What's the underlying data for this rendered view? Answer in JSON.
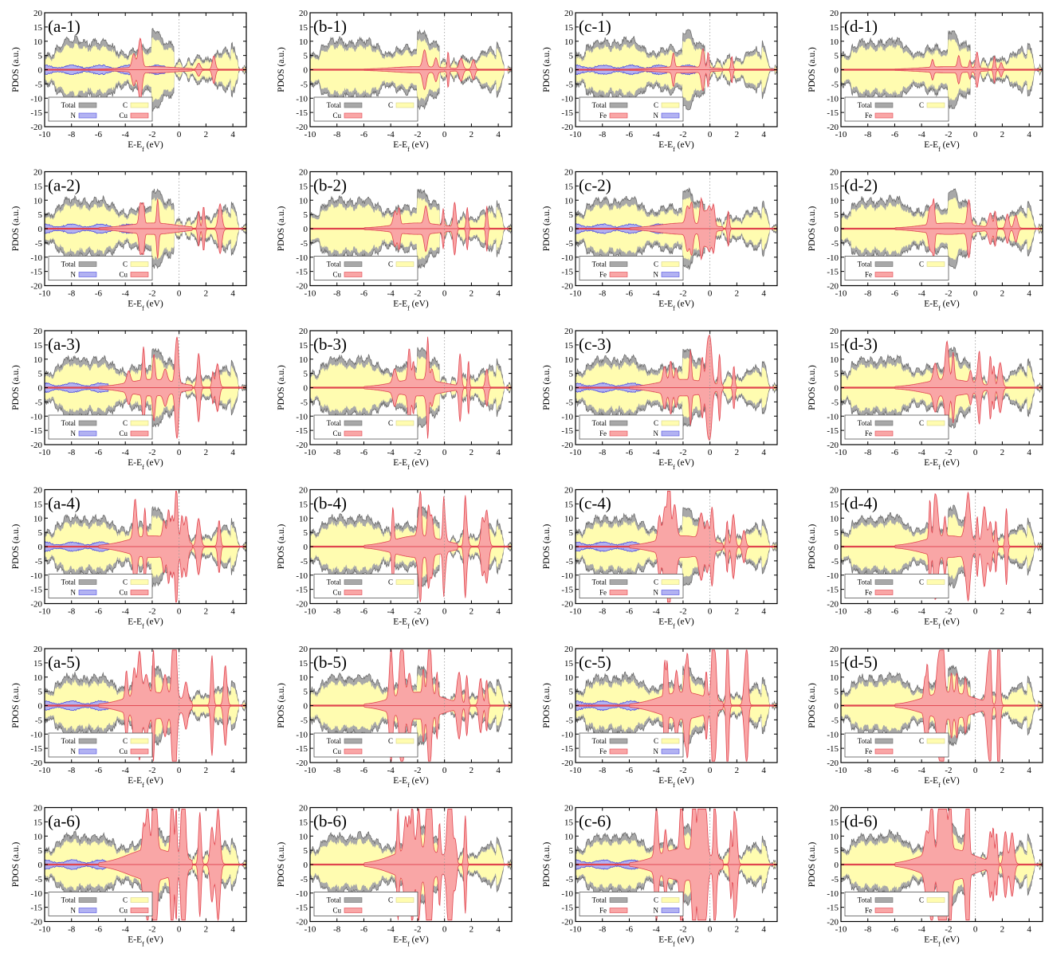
{
  "figure": {
    "columns": [
      "a",
      "b",
      "c",
      "d"
    ],
    "rows": [
      1,
      2,
      3,
      4,
      5,
      6
    ],
    "colors": {
      "total": "#a8a8a8",
      "total_edge": "#6e6e6e",
      "carbon": "#fffcb0",
      "metal": "#f9a6a6",
      "metal_edge": "#e0454f",
      "nitrogen": "#b2b2f2",
      "nitrogen_edge": "#5050e0",
      "axis": "#000000",
      "zero_line": "#9a9a9a"
    }
  },
  "chart_data": {
    "type": "area",
    "layout": "4 columns (a, b, c, d) x 6 rows (1-6) of PDOS panels",
    "ylabel": "PDOS (a.u.)",
    "xlabel": "E-E_f (eV)",
    "xlim": [
      -10,
      5
    ],
    "ylim": [
      -20,
      20
    ],
    "xticks": [
      -10,
      -8,
      -6,
      -4,
      -2,
      0,
      2,
      4
    ],
    "yticks": [
      -20,
      -15,
      -10,
      -5,
      0,
      5,
      10,
      15,
      20
    ],
    "fermi_line": 0,
    "legend_position": "lower-left",
    "columns": [
      {
        "id": "a",
        "metal": "Cu",
        "has_N": true,
        "legend": [
          "Total",
          "C",
          "N",
          "Cu"
        ],
        "panels": [
          "(a-1)",
          "(a-2)",
          "(a-3)",
          "(a-4)",
          "(a-5)",
          "(a-6)"
        ]
      },
      {
        "id": "b",
        "metal": "Cu",
        "has_N": false,
        "legend": [
          "Total",
          "C",
          "Cu"
        ],
        "panels": [
          "(b-1)",
          "(b-2)",
          "(b-3)",
          "(b-4)",
          "(b-5)",
          "(b-6)"
        ]
      },
      {
        "id": "c",
        "metal": "Fe",
        "has_N": true,
        "legend": [
          "Total",
          "C",
          "Fe",
          "N"
        ],
        "panels": [
          "(c-1)",
          "(c-2)",
          "(c-3)",
          "(c-4)",
          "(c-5)",
          "(c-6)"
        ]
      },
      {
        "id": "d",
        "metal": "Fe",
        "has_N": false,
        "legend": [
          "Total",
          "C",
          "Fe"
        ],
        "panels": [
          "(d-1)",
          "(d-2)",
          "(d-3)",
          "(d-4)",
          "(d-5)",
          "(d-6)"
        ]
      }
    ],
    "series_shape_notes": {
      "Total": "symmetric spin-up/down envelope, ~5-12 between -10 and -2 eV, gap near 0 eV, ~8-12 near 3.5 eV",
      "C": "slightly below Total everywhere",
      "N": "small envelope ~1 a.u. from -10 to -1 eV",
      "metal": "grows from row 1 (sparse peaks near -2 eV) to row 6 (large peaks, up to 20, between -4 and 0 eV)"
    }
  }
}
